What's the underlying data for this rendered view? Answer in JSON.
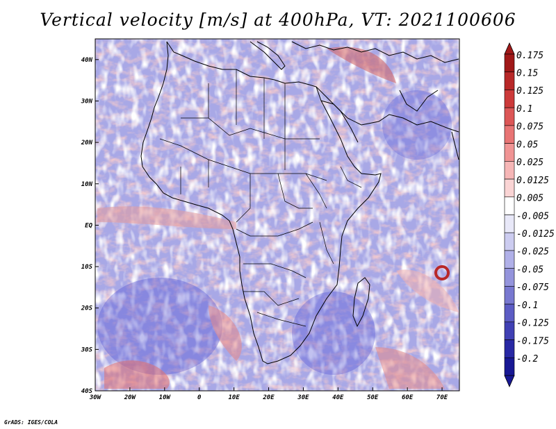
{
  "title": "Vertical velocity [m/s] at 400hPa, VT: 2021100606",
  "footer": "GrADS: IGES/COLA",
  "map": {
    "lon_range": [
      -30,
      75
    ],
    "lat_range": [
      -40,
      45
    ],
    "lon_ticks": [
      "30W",
      "20W",
      "10W",
      "0",
      "10E",
      "20E",
      "30E",
      "40E",
      "50E",
      "60E",
      "70E"
    ],
    "lat_ticks": [
      "40N",
      "30N",
      "20N",
      "10N",
      "EQ",
      "10S",
      "20S",
      "30S",
      "40S"
    ]
  },
  "colorbar": {
    "labels": [
      "0.175",
      "0.15",
      "0.125",
      "0.1",
      "0.075",
      "0.05",
      "0.025",
      "0.0125",
      "0.005",
      "-0.005",
      "-0.0125",
      "-0.025",
      "-0.05",
      "-0.075",
      "-0.1",
      "-0.125",
      "-0.175",
      "-0.2"
    ],
    "colors": [
      "#a01818",
      "#b82828",
      "#cc3a3a",
      "#dc5656",
      "#e87474",
      "#f09494",
      "#f6b6b6",
      "#fad4d4",
      "#ffffff",
      "#e8e8f8",
      "#ccccf0",
      "#b0b0e8",
      "#9494dc",
      "#7878d0",
      "#5c5cc4",
      "#4040b4",
      "#2828a4",
      "#181894"
    ]
  }
}
